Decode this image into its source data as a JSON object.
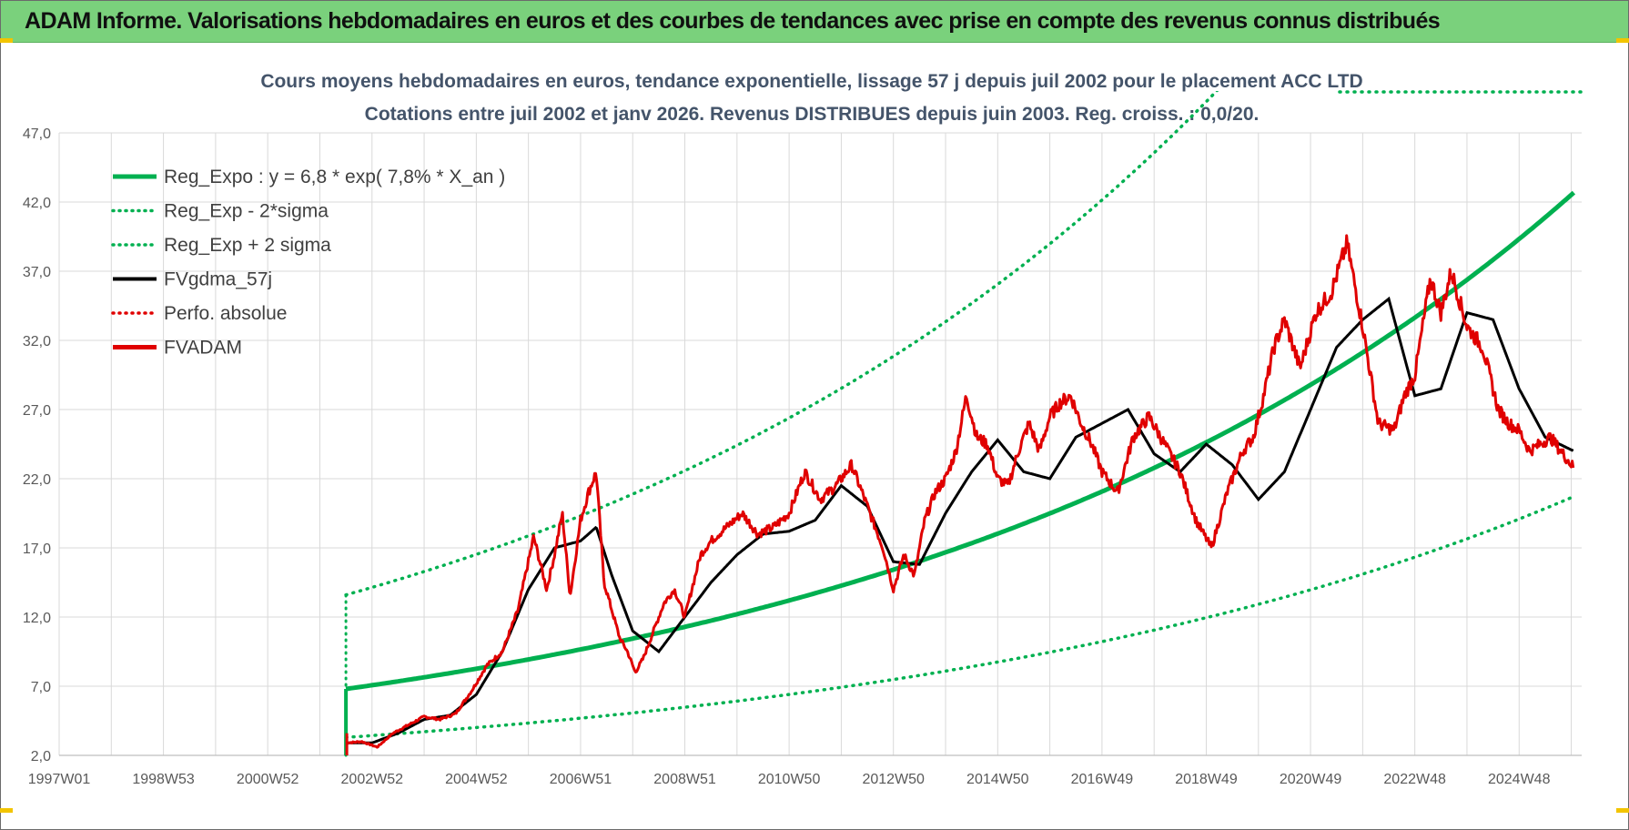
{
  "banner": {
    "title": "ADAM Informe. Valorisations hebdomadaires en euros et des courbes de tendances avec prise en compte des revenus connus distribués",
    "bg_color": "#7ad17c"
  },
  "chart_data": {
    "type": "line",
    "title_line1": "Cours moyens hebdomadaires en euros, tendance exponentielle, lissage 57 j depuis juil 2002 pour le placement ACC LTD",
    "title_line2": "Cotations entre juil 2002 et janv 2026. Revenus DISTRIBUES depuis juin 2003. Reg. croiss. : 0,0/20.",
    "ylim": [
      2.0,
      47.0
    ],
    "yticks": [
      "2,0",
      "7,0",
      "12,0",
      "17,0",
      "22,0",
      "27,0",
      "32,0",
      "37,0",
      "42,0",
      "47,0"
    ],
    "xlim": [
      1997.0,
      2026.2
    ],
    "xticks": [
      {
        "label": "1997W01",
        "year": 1997.0
      },
      {
        "label": "1998W53",
        "year": 1999.0
      },
      {
        "label": "2000W52",
        "year": 2001.0
      },
      {
        "label": "2002W52",
        "year": 2003.0
      },
      {
        "label": "2004W52",
        "year": 2005.0
      },
      {
        "label": "2006W51",
        "year": 2007.0
      },
      {
        "label": "2008W51",
        "year": 2009.0
      },
      {
        "label": "2010W50",
        "year": 2011.0
      },
      {
        "label": "2012W50",
        "year": 2013.0
      },
      {
        "label": "2014W50",
        "year": 2015.0
      },
      {
        "label": "2016W49",
        "year": 2017.0
      },
      {
        "label": "2018W49",
        "year": 2019.0
      },
      {
        "label": "2020W49",
        "year": 2021.0
      },
      {
        "label": "2022W48",
        "year": 2023.0
      },
      {
        "label": "2024W48",
        "year": 2025.0
      }
    ],
    "legend": [
      {
        "key": "reg",
        "label": "Reg_Expo : y = 6,8 * exp( 7,8% *  X_an )",
        "color": "#00b050",
        "style": "solid"
      },
      {
        "key": "low",
        "label": "Reg_Exp - 2*sigma",
        "color": "#00b050",
        "style": "dotted"
      },
      {
        "key": "high",
        "label": "Reg_Exp + 2 sigma",
        "color": "#00b050",
        "style": "dotted"
      },
      {
        "key": "sma",
        "label": "FVgdma_57j",
        "color": "#000000",
        "style": "solid"
      },
      {
        "key": "perf",
        "label": "Perfo. absolue",
        "color": "#e00000",
        "style": "dotted"
      },
      {
        "key": "price",
        "label": "FVADAM",
        "color": "#e00000",
        "style": "solid"
      }
    ],
    "regression": {
      "a": 6.8,
      "rate": 0.078,
      "start_year": 2002.5,
      "end_year": 2026.05,
      "sigma_high_start": 13.6,
      "sigma_low_start": 3.3
    },
    "series": [
      {
        "name": "FVADAM",
        "x": [
          2002.5,
          2002.8,
          2003.1,
          2003.4,
          2003.7,
          2004.0,
          2004.3,
          2004.6,
          2004.9,
          2005.2,
          2005.5,
          2005.8,
          2006.1,
          2006.35,
          2006.5,
          2006.65,
          2006.8,
          2007.0,
          2007.15,
          2007.3,
          2007.45,
          2007.6,
          2007.75,
          2007.9,
          2008.05,
          2008.2,
          2008.4,
          2008.6,
          2008.8,
          2009.0,
          2009.1,
          2009.3,
          2009.5,
          2009.8,
          2010.1,
          2010.4,
          2010.7,
          2011.0,
          2011.3,
          2011.6,
          2011.9,
          2012.2,
          2012.4,
          2012.6,
          2012.8,
          2013.0,
          2013.2,
          2013.4,
          2013.6,
          2013.8,
          2014.0,
          2014.2,
          2014.4,
          2014.6,
          2014.8,
          2015.0,
          2015.2,
          2015.4,
          2015.6,
          2015.8,
          2016.0,
          2016.2,
          2016.4,
          2016.6,
          2016.8,
          2017.0,
          2017.3,
          2017.6,
          2017.9,
          2018.2,
          2018.5,
          2018.8,
          2019.1,
          2019.4,
          2019.7,
          2019.9,
          2020.1,
          2020.3,
          2020.5,
          2020.8,
          2021.1,
          2021.4,
          2021.7,
          2022.0,
          2022.3,
          2022.6,
          2022.8,
          2023.0,
          2023.15,
          2023.3,
          2023.5,
          2023.7,
          2024.0,
          2024.3,
          2024.6,
          2024.8,
          2025.0,
          2025.2,
          2025.4,
          2025.6,
          2025.8,
          2026.05
        ],
        "values": [
          2.9,
          3.0,
          2.6,
          3.6,
          4.2,
          4.8,
          4.6,
          5.0,
          6.6,
          8.5,
          9.5,
          12.5,
          17.8,
          14.0,
          16.5,
          19.5,
          13.5,
          19.0,
          21.0,
          22.5,
          14.5,
          12.5,
          10.5,
          9.5,
          8.0,
          9.0,
          11.0,
          13.0,
          14.0,
          12.0,
          13.5,
          16.5,
          17.5,
          18.5,
          19.5,
          18.0,
          18.5,
          19.5,
          22.5,
          20.5,
          21.5,
          23.0,
          21.0,
          19.0,
          17.0,
          14.0,
          16.5,
          15.0,
          19.0,
          21.0,
          22.0,
          24.0,
          28.0,
          25.0,
          24.5,
          22.0,
          21.5,
          24.0,
          26.0,
          24.0,
          26.5,
          27.5,
          28.0,
          26.0,
          24.5,
          22.5,
          21.0,
          25.0,
          26.5,
          24.5,
          22.5,
          19.0,
          17.0,
          21.0,
          24.0,
          25.0,
          28.0,
          31.5,
          33.5,
          30.0,
          34.0,
          35.5,
          39.0,
          33.0,
          26.0,
          25.5,
          28.0,
          29.5,
          33.0,
          36.5,
          34.0,
          37.0,
          33.0,
          31.5,
          27.0,
          26.0,
          25.5,
          24.0,
          24.5,
          25.0,
          24.0,
          22.8
        ]
      },
      {
        "name": "FVgdma_57j",
        "x": [
          2002.5,
          2003.0,
          2003.5,
          2004.0,
          2004.5,
          2005.0,
          2005.5,
          2006.0,
          2006.5,
          2007.0,
          2007.3,
          2007.6,
          2008.0,
          2008.5,
          2009.0,
          2009.5,
          2010.0,
          2010.5,
          2011.0,
          2011.5,
          2012.0,
          2012.5,
          2013.0,
          2013.5,
          2014.0,
          2014.5,
          2015.0,
          2015.5,
          2016.0,
          2016.5,
          2017.0,
          2017.5,
          2018.0,
          2018.5,
          2019.0,
          2019.5,
          2020.0,
          2020.5,
          2021.0,
          2021.5,
          2022.0,
          2022.5,
          2023.0,
          2023.5,
          2024.0,
          2024.5,
          2025.0,
          2025.5,
          2026.05
        ],
        "values": [
          2.9,
          2.9,
          3.6,
          4.6,
          4.9,
          6.4,
          9.5,
          14.0,
          17.0,
          17.5,
          18.5,
          15.0,
          11.0,
          9.5,
          12.0,
          14.5,
          16.5,
          18.0,
          18.2,
          19.0,
          21.5,
          20.0,
          16.0,
          15.8,
          19.5,
          22.5,
          24.8,
          22.5,
          22.0,
          25.0,
          26.0,
          27.0,
          23.8,
          22.5,
          24.5,
          23.0,
          20.5,
          22.5,
          27.0,
          31.5,
          33.5,
          35.0,
          28.0,
          28.5,
          34.0,
          33.5,
          28.5,
          25.0,
          24.0
        ]
      }
    ]
  }
}
